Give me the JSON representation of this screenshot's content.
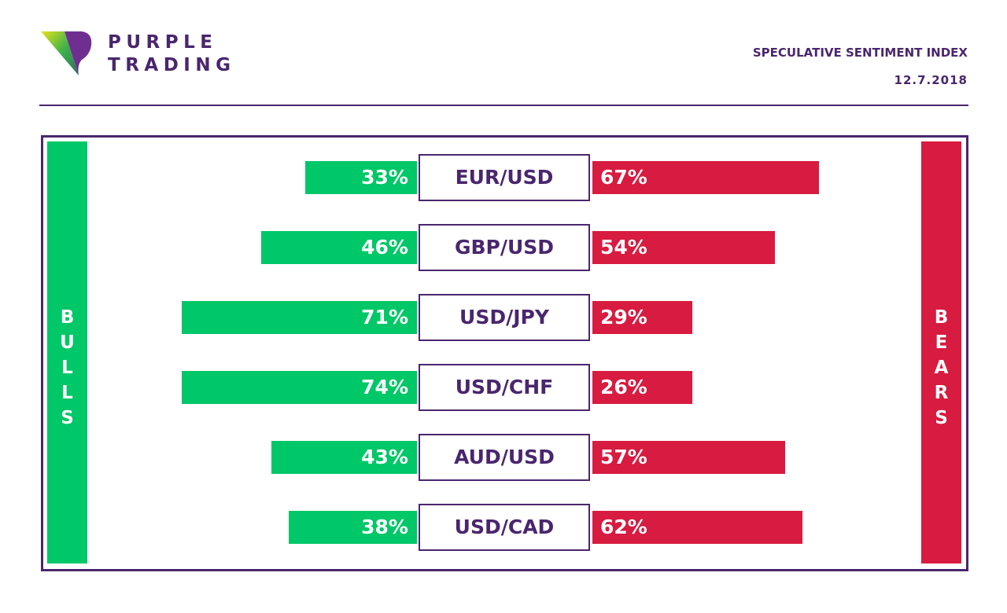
{
  "brand": {
    "line1": "PURPLE",
    "line2": "TRADING"
  },
  "header": {
    "title": "SPECULATIVE SENTIMENT INDEX",
    "date": "12.7.2018"
  },
  "colors": {
    "bulls": "#00c767",
    "bears": "#d81b40",
    "brand": "#4a266e"
  },
  "labels": {
    "bulls": "BULLS",
    "bears": "BEARS"
  },
  "chart_data": {
    "type": "bar",
    "title": "SPECULATIVE SENTIMENT INDEX",
    "subtitle": "12.7.2018",
    "categories": [
      "EUR/USD",
      "GBP/USD",
      "USD/JPY",
      "USD/CHF",
      "AUD/USD",
      "USD/CAD"
    ],
    "series": [
      {
        "name": "BULLS",
        "values": [
          33,
          46,
          71,
          74,
          43,
          38
        ],
        "labels": [
          "33%",
          "46%",
          "71%",
          "74%",
          "43%",
          "38%"
        ]
      },
      {
        "name": "BEARS",
        "values": [
          67,
          54,
          29,
          26,
          57,
          62
        ],
        "labels": [
          "67%",
          "54%",
          "29%",
          "26%",
          "57%",
          "62%"
        ]
      }
    ],
    "unit": "%",
    "orientation": "horizontal-diverging"
  }
}
